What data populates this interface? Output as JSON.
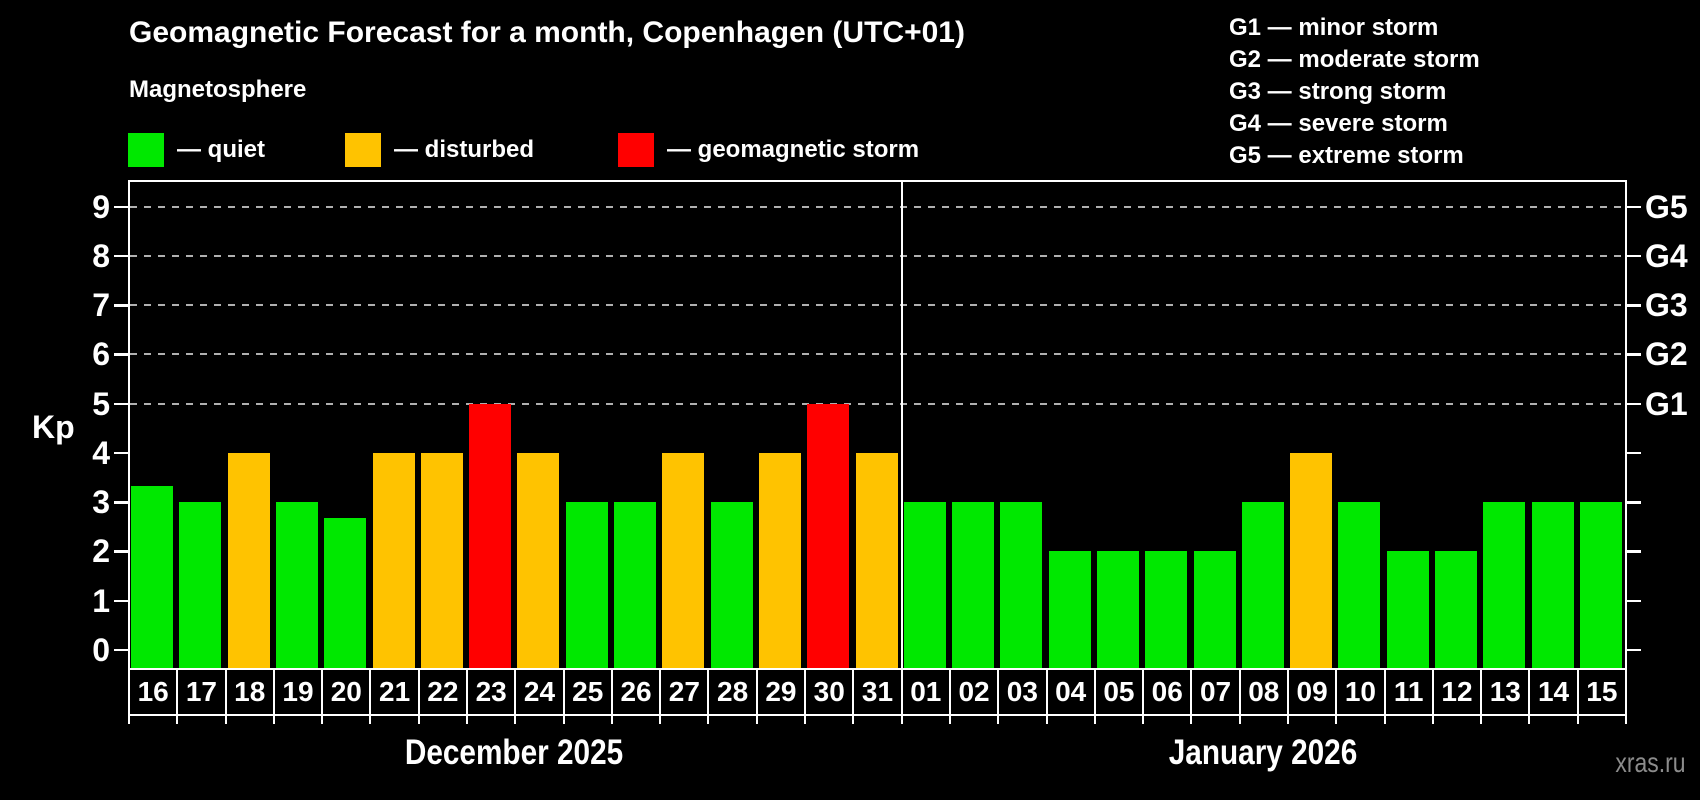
{
  "header": {
    "title": "Geomagnetic Forecast for a month, Copenhagen (UTC+01)",
    "subtitle": "Magnetosphere"
  },
  "legend": {
    "items": [
      {
        "key": "quiet",
        "label": "— quiet"
      },
      {
        "key": "disturbed",
        "label": "— disturbed"
      },
      {
        "key": "storm",
        "label": "— geomagnetic storm"
      }
    ]
  },
  "g_legend": {
    "items": [
      {
        "text": "G1 — minor storm"
      },
      {
        "text": "G2 — moderate storm"
      },
      {
        "text": "G3 — strong storm"
      },
      {
        "text": "G4 — severe storm"
      },
      {
        "text": "G5 — extreme storm"
      }
    ]
  },
  "watermark": "xras.ru",
  "colors": {
    "quiet": "#00e800",
    "disturbed": "#ffc300",
    "storm": "#ff0000",
    "background": "#000000",
    "axis": "#ffffff",
    "gridline": "#b0b0b0",
    "watermark_text": "#8c8c8c"
  },
  "chart_data": {
    "type": "bar",
    "title": "Geomagnetic Forecast for a month, Copenhagen (UTC+01)",
    "ylabel": "Kp",
    "xlabel": "",
    "ylim": [
      0,
      9.5
    ],
    "yticks": [
      0,
      1,
      2,
      3,
      4,
      5,
      6,
      7,
      8,
      9
    ],
    "grid": "horizontal dashed lines at Kp 5-9 only",
    "gridline_levels": [
      5,
      6,
      7,
      8,
      9
    ],
    "right_axis": {
      "labels": [
        {
          "level": 5,
          "label": "G1"
        },
        {
          "level": 6,
          "label": "G2"
        },
        {
          "level": 7,
          "label": "G3"
        },
        {
          "level": 8,
          "label": "G4"
        },
        {
          "level": 9,
          "label": "G5"
        }
      ]
    },
    "legend_position": "top-left",
    "months": [
      {
        "label": "December 2025",
        "days": [
          "16",
          "17",
          "18",
          "19",
          "20",
          "21",
          "22",
          "23",
          "24",
          "25",
          "26",
          "27",
          "28",
          "29",
          "30",
          "31"
        ],
        "values": [
          3.33,
          3,
          4,
          3,
          2.67,
          4,
          4,
          5,
          4,
          3,
          3,
          4,
          3,
          4,
          5,
          4
        ],
        "status": [
          "quiet",
          "quiet",
          "disturbed",
          "quiet",
          "quiet",
          "disturbed",
          "disturbed",
          "storm",
          "disturbed",
          "quiet",
          "quiet",
          "disturbed",
          "quiet",
          "disturbed",
          "storm",
          "disturbed"
        ]
      },
      {
        "label": "January 2026",
        "days": [
          "01",
          "02",
          "03",
          "04",
          "05",
          "06",
          "07",
          "08",
          "09",
          "10",
          "11",
          "12",
          "13",
          "14",
          "15"
        ],
        "values": [
          3,
          3,
          3,
          2,
          2,
          2,
          2,
          3,
          4,
          3,
          2,
          2,
          3,
          3,
          3
        ],
        "status": [
          "quiet",
          "quiet",
          "quiet",
          "quiet",
          "quiet",
          "quiet",
          "quiet",
          "quiet",
          "disturbed",
          "quiet",
          "quiet",
          "quiet",
          "quiet",
          "quiet",
          "quiet"
        ]
      }
    ]
  }
}
